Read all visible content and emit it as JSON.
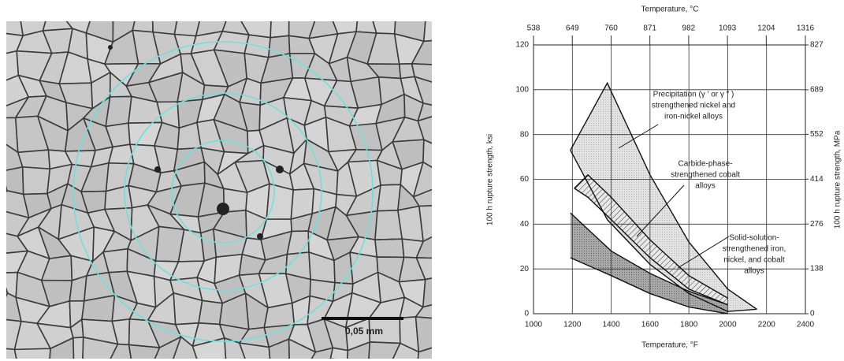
{
  "micrograph": {
    "scale_label": "0,05 mm"
  },
  "chart_data": {
    "type": "band",
    "xlabel": "Temperature, °F",
    "x2label": "Temperature, °C",
    "ylabel": "100 h rupture strength, ksi",
    "y2label": "100 h rupture strength, MPa",
    "xlim": [
      1000,
      2400
    ],
    "xticks": [
      1000,
      1200,
      1400,
      1600,
      1800,
      2000,
      2200,
      2400
    ],
    "x2lim": [
      538,
      1316
    ],
    "x2ticks": [
      538,
      649,
      760,
      871,
      982,
      1093,
      1204,
      1316
    ],
    "ylim": [
      0,
      120
    ],
    "yticks": [
      0,
      20,
      40,
      60,
      80,
      100,
      120
    ],
    "y2lim": [
      0,
      827
    ],
    "y2ticks": [
      0,
      138,
      276,
      414,
      552,
      689,
      827
    ],
    "grid": true,
    "series": [
      {
        "name": "Precipitation (γ′ or γ″) strengthened nickel and iron-nickel alloys",
        "name_lines": [
          "Precipitation (γ ′ or γ ″ )",
          "strengthened nickel and",
          "iron-nickel alloys"
        ],
        "color": "#cfcfcf",
        "x": [
          1190,
          1380,
          1600,
          1800,
          2000,
          2150
        ],
        "upper": [
          73,
          103,
          62,
          32,
          11,
          2
        ],
        "lower": [
          73,
          42,
          22,
          9,
          1,
          2
        ]
      },
      {
        "name": "Carbide-phase-strengthened cobalt alloys",
        "name_lines": [
          "Carbide-phase-",
          "strengthened cobalt",
          "alloys"
        ],
        "color": "#9a9a9a",
        "x": [
          1210,
          1280,
          1400,
          1600,
          1800,
          2000
        ],
        "upper": [
          56,
          62,
          52,
          33,
          17,
          7
        ],
        "lower": [
          56,
          52,
          42,
          25,
          11,
          4
        ]
      },
      {
        "name": "Solid-solution-strengthened iron, nickel, and cobalt alloys",
        "name_lines": [
          "Solid-solution-",
          "strengthened iron,",
          "nickel, and cobalt",
          "alloys"
        ],
        "color": "#8c8c8c",
        "x": [
          1190,
          1400,
          1600,
          1800,
          2000
        ],
        "upper": [
          45,
          28,
          18,
          10,
          4
        ],
        "lower": [
          25,
          17,
          9,
          3,
          0
        ]
      }
    ]
  }
}
